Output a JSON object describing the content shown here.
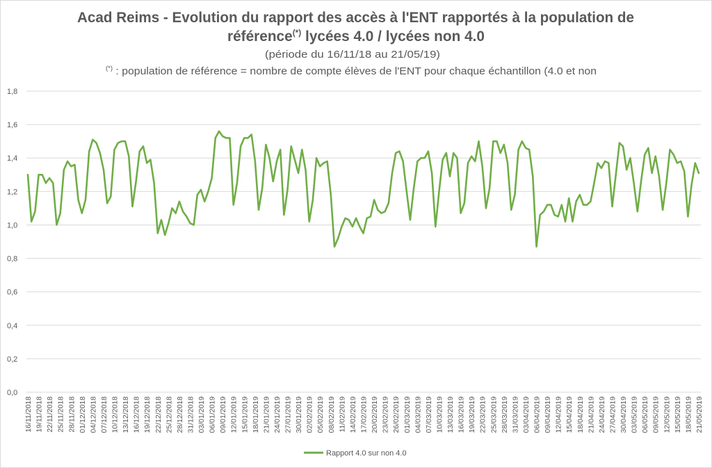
{
  "chart_data": {
    "type": "line",
    "title_line1": "Acad Reims - Evolution du rapport des accès à l'ENT rapportés à la population de",
    "title_line2_a": "référence",
    "title_line2_sup": "(*)",
    "title_line2_b": " lycées 4.0 / lycées non 4.0",
    "subtitle": "(période du 16/11/18 au 21/05/19)",
    "note_sup": "(*)",
    "note": " : population  de référence = nombre de compte élèves  de l'ENT pour chaque échantillon  (4.0 et non",
    "xlabel": "",
    "ylabel": "",
    "ylim": [
      0,
      1.8
    ],
    "y_ticks": [
      "0,0",
      "0,2",
      "0,4",
      "0,6",
      "0,8",
      "1,0",
      "1,2",
      "1,4",
      "1,6",
      "1,8"
    ],
    "x_start": "16/11/2018",
    "x_end": "21/05/2019",
    "x_step_days": 1,
    "x_tick_every": 3,
    "x_tick_labels": [
      "16/11/2018",
      "19/11/2018",
      "22/11/2018",
      "25/11/2018",
      "28/11/2018",
      "01/12/2018",
      "04/12/2018",
      "07/12/2018",
      "10/12/2018",
      "13/12/2018",
      "16/12/2018",
      "19/12/2018",
      "22/12/2018",
      "25/12/2018",
      "28/12/2018",
      "31/12/2018",
      "03/01/2019",
      "06/01/2019",
      "09/01/2019",
      "12/01/2019",
      "15/01/2019",
      "18/01/2019",
      "21/01/2019",
      "24/01/2019",
      "27/01/2019",
      "30/01/2019",
      "02/02/2019",
      "05/02/2019",
      "08/02/2019",
      "11/02/2019",
      "14/02/2019",
      "17/02/2019",
      "20/02/2019",
      "23/02/2019",
      "26/02/2019",
      "01/03/2019",
      "04/03/2019",
      "07/03/2019",
      "10/03/2019",
      "13/03/2019",
      "16/03/2019",
      "19/03/2019",
      "22/03/2019",
      "25/03/2019",
      "28/03/2019",
      "31/03/2019",
      "03/04/2019",
      "06/04/2019",
      "09/04/2019",
      "12/04/2019",
      "15/04/2019",
      "18/04/2019",
      "21/04/2019",
      "24/04/2019",
      "27/04/2019",
      "30/04/2019",
      "03/05/2019",
      "06/05/2019",
      "09/05/2019",
      "12/05/2019",
      "15/05/2019",
      "18/05/2019",
      "21/05/2019"
    ],
    "grid": true,
    "legend_position": "bottom",
    "series": [
      {
        "name": "Rapport 4.0 sur non 4.0",
        "color": "#70ad47",
        "values": [
          1.3,
          1.02,
          1.08,
          1.3,
          1.3,
          1.25,
          1.28,
          1.25,
          1.0,
          1.07,
          1.33,
          1.38,
          1.35,
          1.36,
          1.15,
          1.07,
          1.15,
          1.44,
          1.51,
          1.49,
          1.43,
          1.33,
          1.13,
          1.17,
          1.45,
          1.49,
          1.5,
          1.5,
          1.41,
          1.11,
          1.26,
          1.44,
          1.47,
          1.37,
          1.39,
          1.25,
          0.95,
          1.03,
          0.94,
          1.01,
          1.1,
          1.07,
          1.14,
          1.08,
          1.05,
          1.01,
          1.0,
          1.18,
          1.21,
          1.14,
          1.2,
          1.28,
          1.52,
          1.56,
          1.53,
          1.52,
          1.52,
          1.12,
          1.25,
          1.47,
          1.52,
          1.52,
          1.54,
          1.38,
          1.09,
          1.22,
          1.48,
          1.4,
          1.26,
          1.38,
          1.45,
          1.06,
          1.21,
          1.47,
          1.39,
          1.31,
          1.45,
          1.33,
          1.02,
          1.15,
          1.4,
          1.35,
          1.37,
          1.38,
          1.18,
          0.87,
          0.92,
          0.99,
          1.04,
          1.03,
          0.99,
          1.04,
          0.99,
          0.95,
          1.04,
          1.05,
          1.15,
          1.09,
          1.07,
          1.08,
          1.13,
          1.31,
          1.43,
          1.44,
          1.38,
          1.2,
          1.03,
          1.22,
          1.38,
          1.4,
          1.4,
          1.44,
          1.31,
          0.99,
          1.2,
          1.39,
          1.43,
          1.29,
          1.43,
          1.4,
          1.07,
          1.13,
          1.37,
          1.41,
          1.38,
          1.5,
          1.35,
          1.1,
          1.22,
          1.5,
          1.5,
          1.43,
          1.48,
          1.37,
          1.09,
          1.18,
          1.45,
          1.5,
          1.46,
          1.45,
          1.29,
          0.87,
          1.06,
          1.08,
          1.12,
          1.12,
          1.06,
          1.05,
          1.12,
          1.02,
          1.16,
          1.02,
          1.14,
          1.18,
          1.12,
          1.12,
          1.14,
          1.25,
          1.37,
          1.34,
          1.38,
          1.37,
          1.11,
          1.3,
          1.49,
          1.47,
          1.33,
          1.4,
          1.25,
          1.08,
          1.26,
          1.42,
          1.46,
          1.31,
          1.41,
          1.29,
          1.09,
          1.25,
          1.45,
          1.42,
          1.37,
          1.38,
          1.32,
          1.05,
          1.24,
          1.37,
          1.31
        ]
      }
    ]
  }
}
